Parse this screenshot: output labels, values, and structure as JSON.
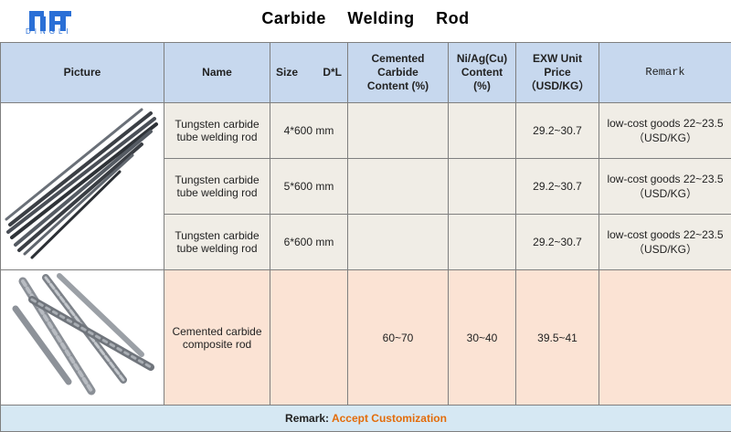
{
  "logo": {
    "text": "DINGLI"
  },
  "title": "Carbide    Welding    Rod",
  "table": {
    "headers": {
      "picture": "Picture",
      "name": "Name",
      "size_left": "Size",
      "size_right": "D*L",
      "cemented_line1": "Cemented Carbide",
      "cemented_line2": "Content (%)",
      "ni_line1": "Ni/Ag(Cu)",
      "ni_line2": "Content (%)",
      "price_line1": "EXW Unit Price",
      "price_line2": "（USD/KG）",
      "remark": "Remark"
    },
    "rows": [
      {
        "name_line1": "Tungsten carbide",
        "name_line2": "tube welding rod",
        "size": "4*600 mm",
        "cemented": "",
        "ni": "",
        "price": "29.2~30.7",
        "remark_line1": "low-cost goods 22~23.5",
        "remark_line2": "（USD/KG）"
      },
      {
        "name_line1": "Tungsten carbide",
        "name_line2": "tube welding rod",
        "size": "5*600 mm",
        "cemented": "",
        "ni": "",
        "price": "29.2~30.7",
        "remark_line1": "low-cost goods 22~23.5",
        "remark_line2": "（USD/KG）"
      },
      {
        "name_line1": "Tungsten carbide",
        "name_line2": "tube welding rod",
        "size": "6*600 mm",
        "cemented": "",
        "ni": "",
        "price": "29.2~30.7",
        "remark_line1": "low-cost goods 22~23.5",
        "remark_line2": "（USD/KG）"
      },
      {
        "name_line1": "Cemented carbide",
        "name_line2": "composite rod",
        "size": "",
        "cemented": "60~70",
        "ni": "30~40",
        "price": "39.5~41",
        "remark_line1": "",
        "remark_line2": ""
      }
    ],
    "footer": {
      "label": "Remark:",
      "value": "Accept  Customization"
    }
  },
  "colors": {
    "header_bg": "#c7d8ee",
    "gray_row": "#f0ede6",
    "peach_row": "#fbe3d4",
    "footer_bg": "#d6e8f3",
    "accent": "#e36c0a",
    "logo": "#2a6fd6"
  }
}
